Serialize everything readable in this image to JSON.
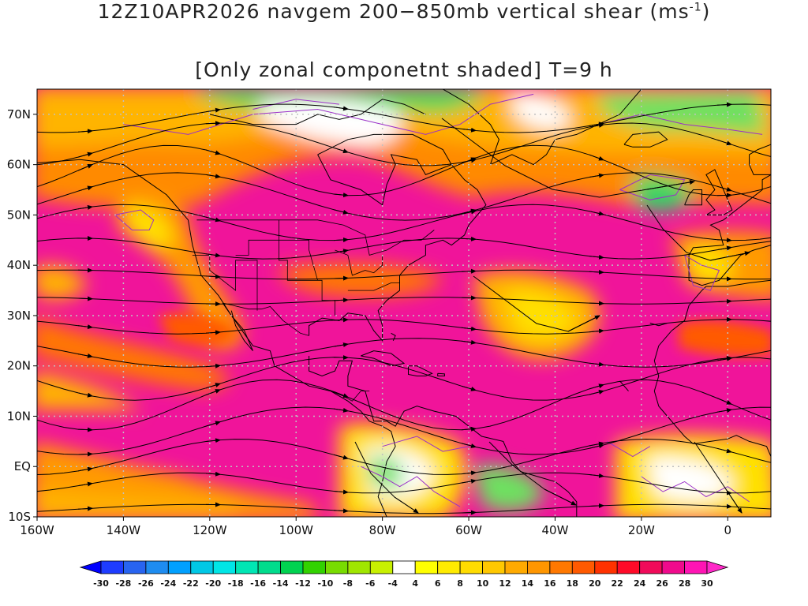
{
  "title": {
    "line1_prefix": "12Z10APR2026 navgem 200−850mb vertical shear (ms",
    "line1_sup": "-1",
    "line1_suffix": ")",
    "line2": "[Only zonal componetnt shaded] T=9 h"
  },
  "map": {
    "lon_range": [
      -160,
      10
    ],
    "lat_range": [
      -10,
      75
    ],
    "lat_labels": [
      "70N",
      "60N",
      "50N",
      "40N",
      "30N",
      "20N",
      "10N",
      "EQ",
      "10S"
    ],
    "lat_values": [
      70,
      60,
      50,
      40,
      30,
      20,
      10,
      0,
      -10
    ],
    "lon_labels": [
      "160W",
      "140W",
      "120W",
      "100W",
      "80W",
      "60W",
      "40W",
      "20W",
      "0"
    ],
    "lon_values": [
      -160,
      -140,
      -120,
      -100,
      -80,
      -60,
      -40,
      -20,
      0
    ],
    "grid_color": "#c0c0c0",
    "coast_color": "#000000",
    "contour_color": "#9b30c8",
    "streamline_color": "#000000"
  },
  "colorbar": {
    "labels": [
      "-30",
      "-28",
      "-26",
      "-24",
      "-22",
      "-20",
      "-18",
      "-16",
      "-14",
      "-12",
      "-10",
      "-8",
      "-6",
      "-4",
      "4",
      "6",
      "8",
      "10",
      "12",
      "14",
      "16",
      "18",
      "20",
      "22",
      "24",
      "26",
      "28",
      "30"
    ],
    "colors": [
      "#0000ff",
      "#1e3cff",
      "#2864f0",
      "#1e8cf0",
      "#00a0ff",
      "#00c8e6",
      "#00e6e6",
      "#00e6b4",
      "#00dc8c",
      "#00d250",
      "#32d200",
      "#78dc00",
      "#a0e600",
      "#c8f000",
      "#ffffff",
      "#ffff00",
      "#ffeb00",
      "#ffdc00",
      "#ffc800",
      "#ffaa00",
      "#ff9600",
      "#ff7800",
      "#ff5a00",
      "#ff3200",
      "#ff0a28",
      "#f00a5a",
      "#f00a8c",
      "#ff14b4",
      "#ff28c8"
    ]
  }
}
